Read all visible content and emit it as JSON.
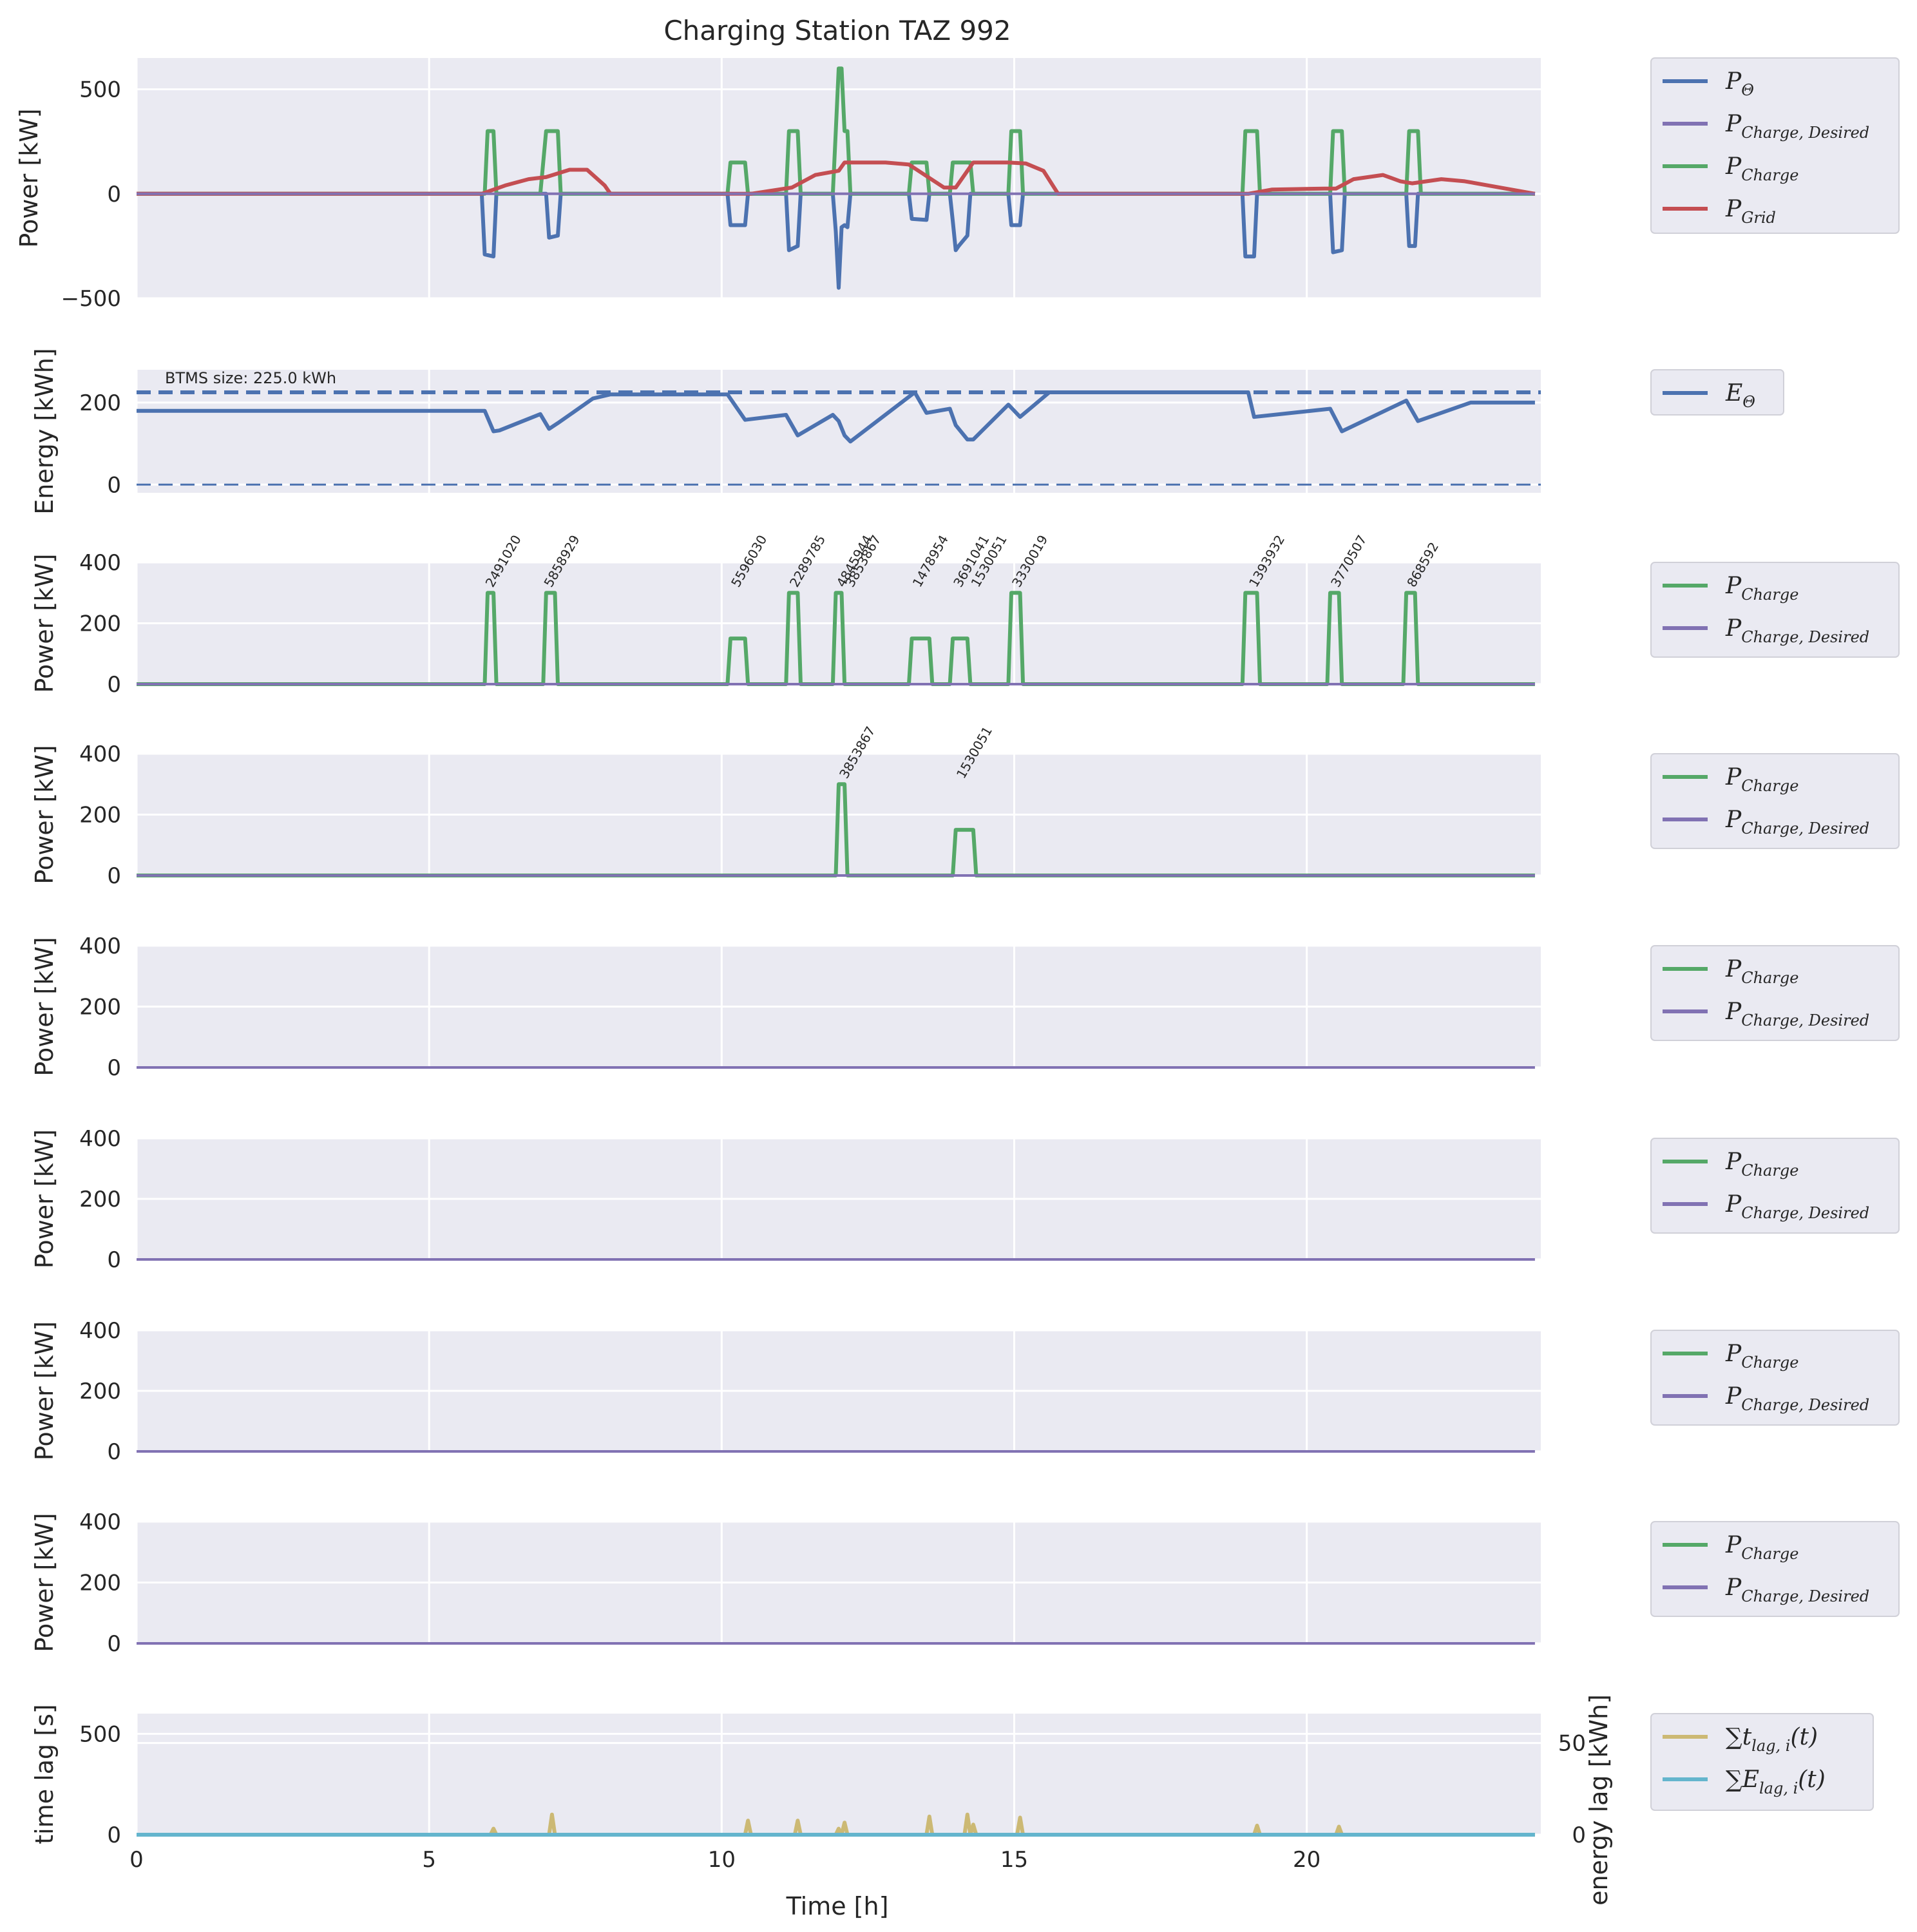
{
  "title": "Charging Station TAZ 992",
  "xlabel": "Time [h]",
  "x_ticks": [
    0,
    5,
    10,
    15,
    20
  ],
  "x_range": [
    0,
    24
  ],
  "colors": {
    "blue": "#4c72b0",
    "green": "#55a868",
    "red": "#c44e52",
    "purple": "#8172b3",
    "tan": "#ccb974",
    "cyan": "#64b5cd",
    "panel_bg": "#eaeaf2",
    "grid": "#ffffff"
  },
  "chart_data": [
    {
      "id": "power_overview",
      "type": "line",
      "ylabel": "Power [kW]",
      "ylim": [
        -500,
        650
      ],
      "y_ticks": [
        -500,
        0,
        500
      ],
      "y_tick_labels": [
        "−500",
        "0",
        "500"
      ],
      "legend": [
        {
          "main": "P",
          "sub": "Θ",
          "color": "blue"
        },
        {
          "main": "P",
          "sub": "Charge, Desired",
          "color": "purple"
        },
        {
          "main": "P",
          "sub": "Charge",
          "color": "green"
        },
        {
          "main": "P",
          "sub": "Grid",
          "color": "red"
        }
      ],
      "series": [
        {
          "name": "P_Θ",
          "color": "blue",
          "x": [
            0,
            5.9,
            5.95,
            6.1,
            6.15,
            7.0,
            7.05,
            7.2,
            7.25,
            10.1,
            10.15,
            10.4,
            10.45,
            11.1,
            11.15,
            11.3,
            11.35,
            11.9,
            11.95,
            12.0,
            12.05,
            12.1,
            12.15,
            12.2,
            12.25,
            13.2,
            13.25,
            13.5,
            13.55,
            13.9,
            13.95,
            14.0,
            14.05,
            14.2,
            14.25,
            14.9,
            14.95,
            15.1,
            15.15,
            18.9,
            18.95,
            19.1,
            19.15,
            20.4,
            20.45,
            20.6,
            20.65,
            21.7,
            21.75,
            21.85,
            21.9,
            23.9
          ],
          "y": [
            0,
            0,
            -290,
            -300,
            0,
            0,
            -210,
            -200,
            0,
            0,
            -150,
            -150,
            0,
            0,
            -270,
            -250,
            0,
            0,
            -180,
            -450,
            -160,
            -150,
            -160,
            0,
            0,
            0,
            -120,
            -125,
            0,
            0,
            -130,
            -270,
            -250,
            -200,
            0,
            0,
            -150,
            -150,
            0,
            0,
            -300,
            -300,
            0,
            0,
            -280,
            -270,
            0,
            0,
            -250,
            -250,
            0,
            0
          ]
        },
        {
          "name": "P_Charge",
          "color": "green",
          "x": [
            0,
            5.95,
            6.0,
            6.1,
            6.15,
            6.9,
            7.0,
            7.2,
            7.25,
            10.1,
            10.15,
            10.4,
            10.45,
            11.1,
            11.15,
            11.3,
            11.35,
            11.9,
            11.95,
            12.0,
            12.05,
            12.1,
            12.15,
            12.2,
            12.25,
            13.2,
            13.25,
            13.5,
            13.55,
            13.9,
            13.95,
            14.25,
            14.3,
            14.9,
            14.95,
            15.1,
            15.15,
            18.9,
            18.95,
            19.15,
            19.2,
            20.4,
            20.45,
            20.6,
            20.65,
            21.7,
            21.75,
            21.9,
            21.95,
            23.9
          ],
          "y": [
            0,
            0,
            300,
            300,
            0,
            0,
            300,
            300,
            0,
            0,
            150,
            150,
            0,
            0,
            300,
            300,
            0,
            0,
            300,
            600,
            600,
            300,
            300,
            0,
            0,
            0,
            150,
            150,
            0,
            0,
            150,
            150,
            0,
            0,
            300,
            300,
            0,
            0,
            300,
            300,
            0,
            0,
            300,
            300,
            0,
            0,
            300,
            300,
            0,
            0
          ]
        },
        {
          "name": "P_Grid",
          "color": "red",
          "x": [
            0,
            5.9,
            6.3,
            6.7,
            7.0,
            7.4,
            7.7,
            8.0,
            8.1,
            10.5,
            11.2,
            11.6,
            12.0,
            12.1,
            12.8,
            13.2,
            13.8,
            14.0,
            14.3,
            14.9,
            15.2,
            15.5,
            15.75,
            19.0,
            19.4,
            20.3,
            20.5,
            20.8,
            21.3,
            21.6,
            21.8,
            22.3,
            22.7,
            23.9
          ],
          "y": [
            0,
            0,
            40,
            70,
            80,
            115,
            115,
            40,
            0,
            0,
            30,
            90,
            110,
            150,
            150,
            140,
            30,
            30,
            150,
            150,
            145,
            110,
            0,
            0,
            20,
            25,
            25,
            70,
            90,
            60,
            50,
            70,
            60,
            0
          ]
        },
        {
          "name": "P_Charge,Desired",
          "color": "purple",
          "x": [
            0,
            23.9
          ],
          "y": [
            0,
            0
          ]
        }
      ]
    },
    {
      "id": "energy",
      "type": "line",
      "ylabel": "Energy [kWh]",
      "ylim": [
        -20,
        280
      ],
      "y_ticks": [
        0,
        200
      ],
      "y_tick_labels": [
        "0",
        "200"
      ],
      "annotation": "BTMS size: 225.0 kWh",
      "hlines": [
        225,
        0
      ],
      "legend": [
        {
          "main": "E",
          "sub": "Θ",
          "color": "blue"
        }
      ],
      "series": [
        {
          "name": "E_Θ",
          "color": "blue",
          "x": [
            0,
            5.95,
            6.1,
            6.2,
            6.9,
            7.05,
            7.2,
            7.8,
            8.1,
            10.1,
            10.4,
            11.1,
            11.3,
            11.9,
            12.0,
            12.1,
            12.2,
            13.3,
            13.5,
            13.9,
            14.0,
            14.2,
            14.3,
            14.9,
            15.1,
            15.6,
            19.0,
            19.1,
            20.4,
            20.6,
            21.7,
            21.9,
            22.8,
            23.9
          ],
          "y": [
            180,
            180,
            130,
            132,
            172,
            136,
            150,
            210,
            220,
            220,
            158,
            170,
            120,
            170,
            155,
            120,
            105,
            225,
            175,
            185,
            145,
            110,
            110,
            195,
            165,
            225,
            225,
            165,
            185,
            130,
            205,
            155,
            200,
            200
          ]
        }
      ]
    },
    {
      "id": "chargers_1",
      "type": "line",
      "ylabel": "Power [kW]",
      "ylim": [
        0,
        400
      ],
      "y_ticks": [
        0,
        200,
        400
      ],
      "y_tick_labels": [
        "0",
        "200",
        "400"
      ],
      "legend": [
        {
          "main": "P",
          "sub": "Charge",
          "color": "green"
        },
        {
          "main": "P",
          "sub": "Charge, Desired",
          "color": "purple"
        }
      ],
      "annotations": [
        {
          "x": 6.0,
          "text": "2491020"
        },
        {
          "x": 7.0,
          "text": "5858929"
        },
        {
          "x": 10.2,
          "text": "5596030"
        },
        {
          "x": 11.2,
          "text": "2289785"
        },
        {
          "x": 12.0,
          "text": "4845944"
        },
        {
          "x": 12.15,
          "text": "3853867"
        },
        {
          "x": 13.3,
          "text": "1478954"
        },
        {
          "x": 14.0,
          "text": "3691041"
        },
        {
          "x": 14.3,
          "text": "1530051"
        },
        {
          "x": 15.0,
          "text": "3330019"
        },
        {
          "x": 19.05,
          "text": "1393932"
        },
        {
          "x": 20.45,
          "text": "3770507"
        },
        {
          "x": 21.75,
          "text": "868592"
        }
      ],
      "series": [
        {
          "name": "P_Charge",
          "color": "green",
          "x": [
            0,
            5.95,
            6.0,
            6.1,
            6.15,
            6.95,
            7.0,
            7.15,
            7.2,
            10.1,
            10.15,
            10.4,
            10.45,
            11.1,
            11.15,
            11.3,
            11.35,
            11.9,
            11.95,
            12.05,
            12.1,
            13.2,
            13.25,
            13.55,
            13.6,
            13.9,
            13.95,
            14.2,
            14.25,
            14.9,
            14.95,
            15.1,
            15.15,
            18.9,
            18.95,
            19.15,
            19.2,
            20.35,
            20.4,
            20.55,
            20.6,
            21.65,
            21.7,
            21.85,
            21.9,
            23.9
          ],
          "y": [
            0,
            0,
            300,
            300,
            0,
            0,
            300,
            300,
            0,
            0,
            150,
            150,
            0,
            0,
            300,
            300,
            0,
            0,
            300,
            300,
            0,
            0,
            150,
            150,
            0,
            0,
            150,
            150,
            0,
            0,
            300,
            300,
            0,
            0,
            300,
            300,
            0,
            0,
            300,
            300,
            0,
            0,
            300,
            300,
            0,
            0
          ]
        },
        {
          "name": "P_Charge,Desired",
          "color": "purple",
          "x": [
            0,
            23.9
          ],
          "y": [
            0,
            0
          ]
        }
      ]
    },
    {
      "id": "chargers_2",
      "type": "line",
      "ylabel": "Power [kW]",
      "ylim": [
        0,
        400
      ],
      "y_ticks": [
        0,
        200,
        400
      ],
      "y_tick_labels": [
        "0",
        "200",
        "400"
      ],
      "legend": [
        {
          "main": "P",
          "sub": "Charge",
          "color": "green"
        },
        {
          "main": "P",
          "sub": "Charge, Desired",
          "color": "purple"
        }
      ],
      "annotations": [
        {
          "x": 12.05,
          "text": "3853867"
        },
        {
          "x": 14.05,
          "text": "1530051"
        }
      ],
      "series": [
        {
          "name": "P_Charge",
          "color": "green",
          "x": [
            0,
            11.95,
            12.0,
            12.1,
            12.15,
            13.95,
            14.0,
            14.3,
            14.35,
            23.9
          ],
          "y": [
            0,
            0,
            300,
            300,
            0,
            0,
            150,
            150,
            0,
            0
          ]
        },
        {
          "name": "P_Charge,Desired",
          "color": "purple",
          "x": [
            0,
            23.9
          ],
          "y": [
            0,
            0
          ]
        }
      ]
    },
    {
      "id": "chargers_3",
      "type": "line",
      "ylabel": "Power [kW]",
      "ylim": [
        0,
        400
      ],
      "y_ticks": [
        0,
        200,
        400
      ],
      "y_tick_labels": [
        "0",
        "200",
        "400"
      ],
      "legend": [
        {
          "main": "P",
          "sub": "Charge",
          "color": "green"
        },
        {
          "main": "P",
          "sub": "Charge, Desired",
          "color": "purple"
        }
      ],
      "series": [
        {
          "name": "P_Charge,Desired",
          "color": "purple",
          "x": [
            0,
            23.9
          ],
          "y": [
            0,
            0
          ]
        }
      ]
    },
    {
      "id": "chargers_4",
      "type": "line",
      "ylabel": "Power [kW]",
      "ylim": [
        0,
        400
      ],
      "y_ticks": [
        0,
        200,
        400
      ],
      "y_tick_labels": [
        "0",
        "200",
        "400"
      ],
      "legend": [
        {
          "main": "P",
          "sub": "Charge",
          "color": "green"
        },
        {
          "main": "P",
          "sub": "Charge, Desired",
          "color": "purple"
        }
      ],
      "series": [
        {
          "name": "P_Charge,Desired",
          "color": "purple",
          "x": [
            0,
            23.9
          ],
          "y": [
            0,
            0
          ]
        }
      ]
    },
    {
      "id": "chargers_5",
      "type": "line",
      "ylabel": "Power [kW]",
      "ylim": [
        0,
        400
      ],
      "y_ticks": [
        0,
        200,
        400
      ],
      "y_tick_labels": [
        "0",
        "200",
        "400"
      ],
      "legend": [
        {
          "main": "P",
          "sub": "Charge",
          "color": "green"
        },
        {
          "main": "P",
          "sub": "Charge, Desired",
          "color": "purple"
        }
      ],
      "series": [
        {
          "name": "P_Charge,Desired",
          "color": "purple",
          "x": [
            0,
            23.9
          ],
          "y": [
            0,
            0
          ]
        }
      ]
    },
    {
      "id": "chargers_6",
      "type": "line",
      "ylabel": "Power [kW]",
      "ylim": [
        0,
        400
      ],
      "y_ticks": [
        0,
        200,
        400
      ],
      "y_tick_labels": [
        "0",
        "200",
        "400"
      ],
      "legend": [
        {
          "main": "P",
          "sub": "Charge",
          "color": "green"
        },
        {
          "main": "P",
          "sub": "Charge, Desired",
          "color": "purple"
        }
      ],
      "series": [
        {
          "name": "P_Charge,Desired",
          "color": "purple",
          "x": [
            0,
            23.9
          ],
          "y": [
            0,
            0
          ]
        }
      ]
    },
    {
      "id": "lag",
      "type": "line",
      "ylabel": "time lag [s]",
      "ylabel_right": "energy lag [kWh]",
      "ylim": [
        0,
        600
      ],
      "y_ticks": [
        0,
        500
      ],
      "y_tick_labels": [
        "0",
        "500"
      ],
      "ylim_right": [
        0,
        66
      ],
      "y_ticks_right": [
        0,
        50
      ],
      "y_tick_labels_right": [
        "0",
        "50"
      ],
      "show_xticks": true,
      "legend": [
        {
          "main": "∑t",
          "sub": "lag, i",
          "suffix": "(t)",
          "color": "tan"
        },
        {
          "main": "∑E",
          "sub": "lag, i",
          "suffix": "(t)",
          "color": "cyan"
        }
      ],
      "series": [
        {
          "name": "sum_t_lag",
          "color": "tan",
          "x": [
            0,
            6.05,
            6.1,
            6.15,
            7.05,
            7.1,
            7.15,
            10.4,
            10.45,
            10.5,
            11.25,
            11.3,
            11.35,
            11.95,
            12.0,
            12.05,
            12.1,
            12.15,
            13.5,
            13.55,
            13.6,
            14.15,
            14.2,
            14.25,
            14.3,
            14.35,
            15.05,
            15.1,
            15.15,
            19.1,
            19.15,
            19.2,
            20.5,
            20.55,
            20.6,
            23.9
          ],
          "y": [
            0,
            0,
            30,
            0,
            0,
            100,
            0,
            0,
            70,
            0,
            0,
            70,
            0,
            0,
            30,
            0,
            60,
            0,
            0,
            90,
            0,
            0,
            100,
            0,
            50,
            0,
            0,
            85,
            0,
            0,
            45,
            0,
            0,
            40,
            0,
            0
          ]
        },
        {
          "name": "sum_E_lag",
          "color": "cyan",
          "x": [
            0,
            23.9
          ],
          "y": [
            0,
            0
          ]
        }
      ]
    }
  ]
}
